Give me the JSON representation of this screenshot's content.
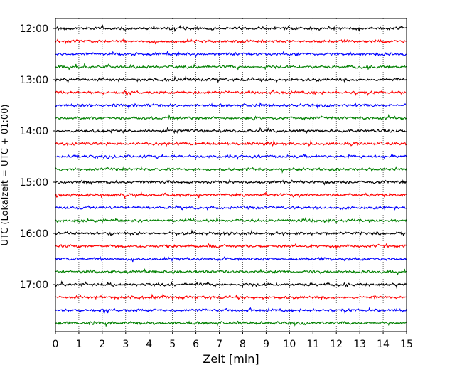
{
  "chart_data": {
    "type": "line",
    "subtype": "helicorder",
    "title": "",
    "xlabel": "Zeit  [min]",
    "ylabel": "UTC (Lokalzeit = UTC + 01:00)",
    "xlim": [
      0,
      15
    ],
    "x_ticks": [
      0,
      1,
      2,
      3,
      4,
      5,
      6,
      7,
      8,
      9,
      10,
      11,
      12,
      13,
      14,
      15
    ],
    "x_tick_labels": [
      "0",
      "1",
      "2",
      "3",
      "4",
      "5",
      "6",
      "7",
      "8",
      "9",
      "10",
      "11",
      "12",
      "13",
      "14",
      "15"
    ],
    "y_tick_labels": [
      "12:00",
      "13:00",
      "14:00",
      "15:00",
      "16:00",
      "17:00"
    ],
    "y_ticks_minutes_after_noon": [
      0,
      60,
      120,
      180,
      240,
      300
    ],
    "trace_interval_min": 15,
    "trace_count": 24,
    "trace_start_minutes_after_noon": [
      0,
      15,
      30,
      45,
      60,
      75,
      90,
      105,
      120,
      135,
      150,
      165,
      180,
      195,
      210,
      225,
      240,
      255,
      270,
      285,
      300,
      315,
      330,
      345
    ],
    "trace_colors": [
      "#000000",
      "#ff0000",
      "#0000ff",
      "#008000"
    ],
    "grid": {
      "x": "dotted vertical lines at every minute",
      "y": false
    },
    "legend": "none"
  }
}
